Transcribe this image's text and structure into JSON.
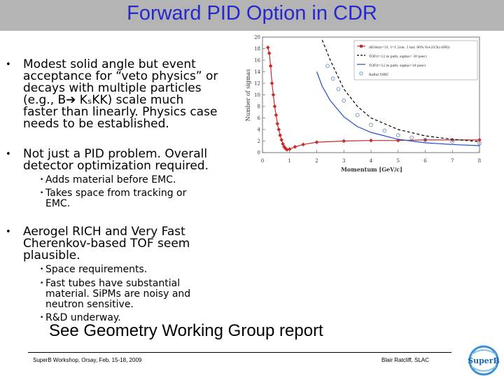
{
  "title": "Forward PID Option in CDR",
  "bullets": [
    {
      "lines": [
        "Modest solid angle but event",
        "acceptance for “veto physics” or",
        "decays with multiple particles",
        "(e.g., B➔ KₛKK) scale much",
        "faster than linearly. Physics case",
        "needs to be established."
      ],
      "sub": []
    },
    {
      "lines": [
        "Not just a PID problem. Overall",
        "detector optimization required."
      ],
      "sub": [
        {
          "lines": [
            "Adds material before EMC."
          ]
        },
        {
          "lines": [
            "Takes space from tracking or",
            "EMC."
          ]
        }
      ]
    },
    {
      "lines": [
        "Aerogel RICH and Very Fast",
        "Cherenkov-based TOF seem",
        "plausible."
      ],
      "sub": [
        {
          "lines": [
            "Space requirements."
          ]
        },
        {
          "lines": [
            "Fast tubes have substantial",
            "material. SiPMs are noisy and",
            "neutron sensitive."
          ]
        },
        {
          "lines": [
            "R&D underway."
          ]
        }
      ]
    }
  ],
  "geometry_note": "See Geometry Working Group report",
  "footer": {
    "left": "SuperB Workshop, Orsay, Feb. 15-18, 2009",
    "right": "Blair Ratcliff, SLAC"
  },
  "logo_text": "SuperB",
  "colors": {
    "title": "#2727cf",
    "title_bar": "#b4b4b4",
    "dedx": "#cc2a2a",
    "tof": "#1f4fd0",
    "dircb": "#6a8ec8"
  },
  "chart_data": {
    "type": "line",
    "xlabel": "Momentum [GeV/c]",
    "ylabel": "Number of sigmas",
    "xlim": [
      0,
      8
    ],
    "ylim": [
      0,
      20
    ],
    "xticks": [
      "0",
      "1",
      "2",
      "3",
      "4",
      "5",
      "6",
      "7",
      "8"
    ],
    "yticks": [
      "0",
      "2",
      "4",
      "6",
      "8",
      "10",
      "12",
      "14",
      "16",
      "18",
      "20"
    ],
    "legend_position": "top-right",
    "series": [
      {
        "name": "dE/dx(n=31, t=1.2cm, 1 bar, 80% Si+2(Ch)-(HB))",
        "style": "line-markers",
        "color": "#cc2a2a",
        "x": [
          0.2,
          0.25,
          0.3,
          0.35,
          0.4,
          0.45,
          0.5,
          0.55,
          0.6,
          0.65,
          0.7,
          0.75,
          0.8,
          0.85,
          0.9,
          1.0,
          1.2,
          1.5,
          2.0,
          3.0,
          4.0,
          5.0,
          6.0,
          7.0,
          8.0
        ],
        "y": [
          18.2,
          17.2,
          15.0,
          12.0,
          10.0,
          8.0,
          6.5,
          5.0,
          4.0,
          3.0,
          2.2,
          1.5,
          1.0,
          0.7,
          0.5,
          0.6,
          1.0,
          1.4,
          1.8,
          2.0,
          2.1,
          2.1,
          2.2,
          2.2,
          2.2
        ]
      },
      {
        "name": "TOF(t=12 m path, sigma= 30 psec)",
        "style": "dashed",
        "color": "#000000",
        "x": [
          2.2,
          2.5,
          3.0,
          3.5,
          4.0,
          5.0,
          6.0,
          7.0,
          8.0
        ],
        "y": [
          19.5,
          16.0,
          11.0,
          8.0,
          6.0,
          4.0,
          2.9,
          2.3,
          1.9
        ]
      },
      {
        "name": "TOF(t=12 m path, sigma=10 psec)",
        "style": "solid",
        "color": "#1f4fd0",
        "x": [
          2.0,
          2.2,
          2.5,
          3.0,
          3.5,
          4.0,
          5.0,
          6.0,
          7.0,
          8.0
        ],
        "y": [
          14.0,
          11.5,
          9.0,
          6.2,
          4.5,
          3.5,
          2.3,
          1.7,
          1.4,
          1.2
        ]
      },
      {
        "name": "BaBar DIRC",
        "style": "markers",
        "color": "#6a8ec8",
        "x": [
          2.4,
          2.6,
          2.8,
          3.0,
          3.5,
          4.0,
          4.5,
          5.0,
          5.5,
          6.0,
          7.0,
          8.0
        ],
        "y": [
          15.0,
          12.8,
          11.0,
          9.0,
          6.5,
          4.8,
          3.8,
          3.0,
          2.6,
          2.2,
          1.9,
          1.6
        ]
      }
    ]
  }
}
